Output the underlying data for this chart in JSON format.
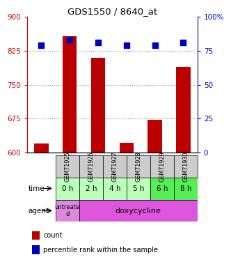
{
  "title": "GDS1550 / 8640_at",
  "samples": [
    "GSM71925",
    "GSM71926",
    "GSM71927",
    "GSM71928",
    "GSM71929",
    "GSM71930"
  ],
  "time_labels": [
    "0 h",
    "2 h",
    "4 h",
    "5 h",
    "6 h",
    "8 h"
  ],
  "count_values": [
    620,
    857,
    810,
    622,
    672,
    790
  ],
  "percentile_values": [
    79,
    83,
    81,
    79,
    79,
    81
  ],
  "ylim_left": [
    600,
    900
  ],
  "ylim_right": [
    0,
    100
  ],
  "yticks_left": [
    600,
    675,
    750,
    825,
    900
  ],
  "yticks_right": [
    0,
    25,
    50,
    75,
    100
  ],
  "bar_color": "#bb0000",
  "dot_color": "#0000bb",
  "grid_color": "#888888",
  "sample_bg": "#cccccc",
  "time_bg_light": "#bbffbb",
  "time_bg_dark": "#55ee55",
  "agent_untreated_bg": "#dd88dd",
  "agent_doxy_bg": "#dd55dd",
  "left_label_color": "#cc0000",
  "right_label_color": "#0000cc",
  "bar_width": 0.5,
  "dot_size": 30,
  "fig_width": 3.31,
  "fig_height": 3.75
}
